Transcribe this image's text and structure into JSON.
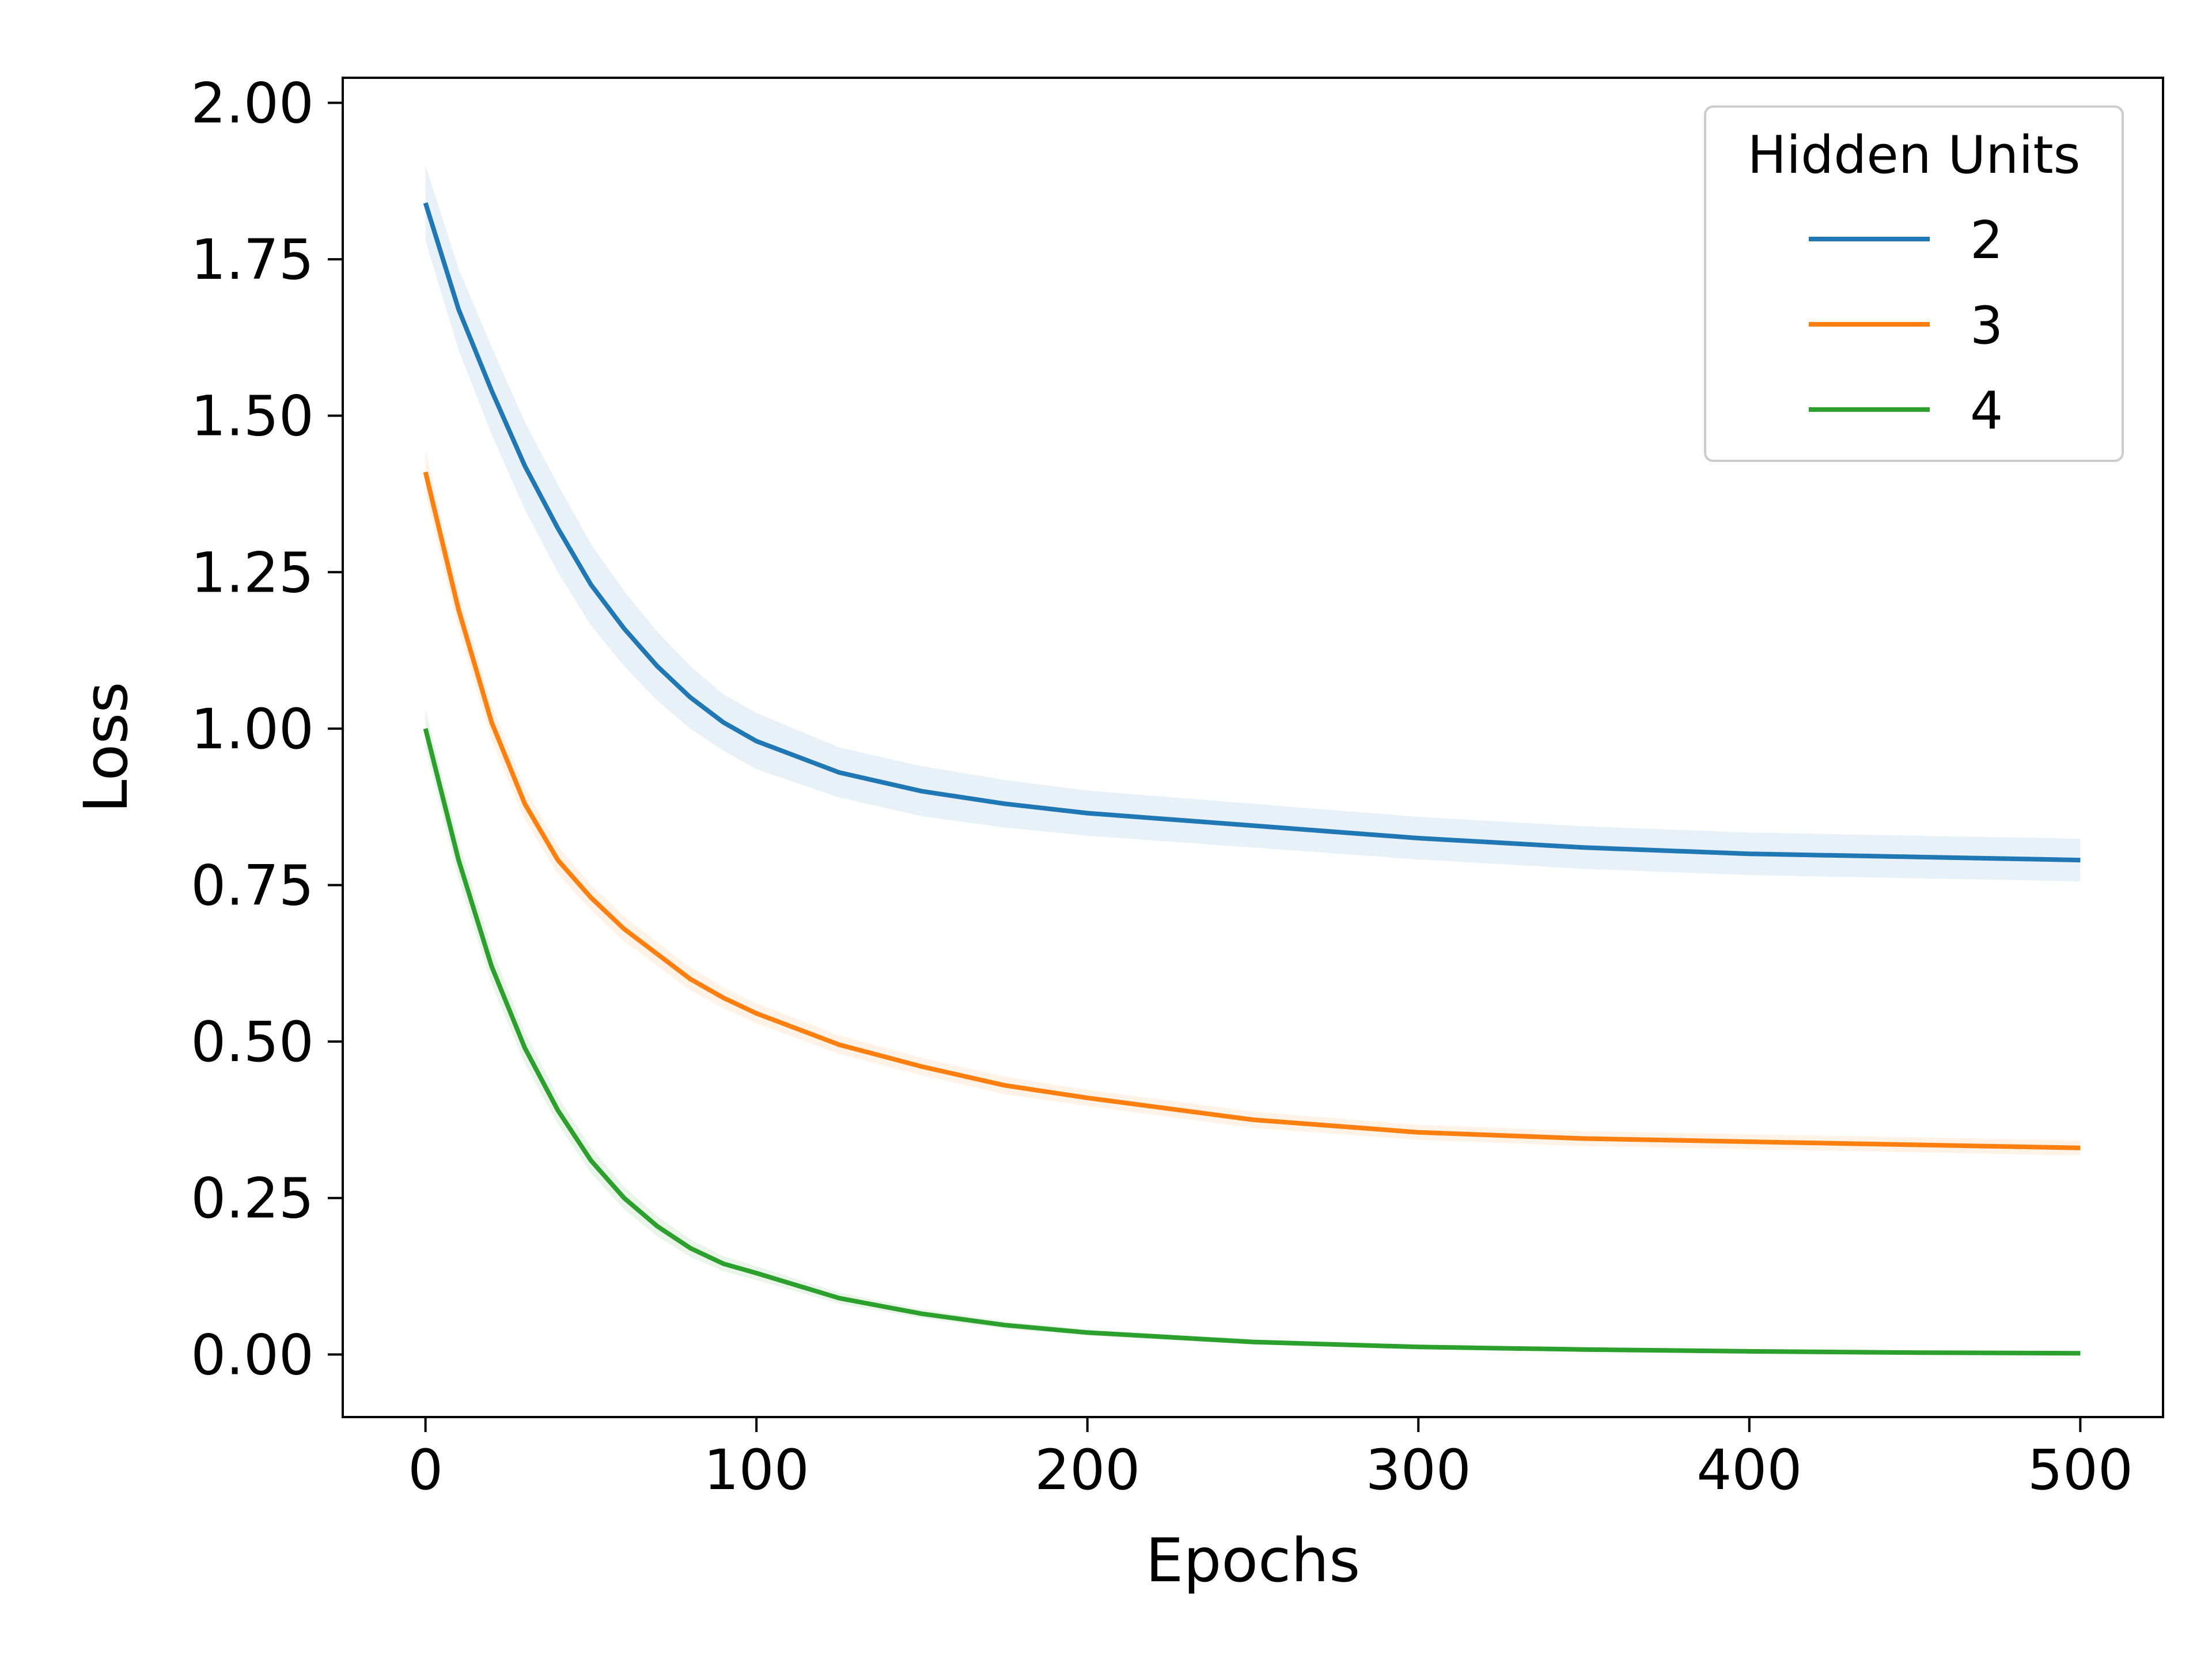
{
  "chart_data": {
    "type": "line",
    "title": "",
    "xlabel": "Epochs",
    "ylabel": "Loss",
    "xlim": [
      -25,
      525
    ],
    "ylim": [
      -0.1,
      2.04
    ],
    "xticks": [
      0,
      100,
      200,
      300,
      400,
      500
    ],
    "xtick_labels": [
      "0",
      "100",
      "200",
      "300",
      "400",
      "500"
    ],
    "yticks": [
      0.0,
      0.25,
      0.5,
      0.75,
      1.0,
      1.25,
      1.5,
      1.75,
      2.0
    ],
    "ytick_labels": [
      "0.00",
      "0.25",
      "0.50",
      "0.75",
      "1.00",
      "1.25",
      "1.50",
      "1.75",
      "2.00"
    ],
    "grid": false,
    "legend": {
      "title": "Hidden Units",
      "position": "top-right"
    },
    "x": [
      0,
      10,
      20,
      30,
      40,
      50,
      60,
      70,
      80,
      90,
      100,
      125,
      150,
      175,
      200,
      250,
      300,
      350,
      400,
      450,
      500
    ],
    "series": [
      {
        "name": "2",
        "color": "#1f77b4",
        "values": [
          1.84,
          1.67,
          1.54,
          1.42,
          1.32,
          1.23,
          1.16,
          1.1,
          1.05,
          1.01,
          0.98,
          0.93,
          0.9,
          0.88,
          0.865,
          0.845,
          0.825,
          0.81,
          0.8,
          0.795,
          0.79
        ],
        "band": [
          0.06,
          0.065,
          0.07,
          0.07,
          0.07,
          0.065,
          0.06,
          0.055,
          0.05,
          0.045,
          0.045,
          0.04,
          0.04,
          0.038,
          0.036,
          0.035,
          0.034,
          0.034,
          0.034,
          0.034,
          0.034
        ]
      },
      {
        "name": "3",
        "color": "#ff7f0e",
        "values": [
          1.41,
          1.19,
          1.01,
          0.88,
          0.79,
          0.73,
          0.68,
          0.64,
          0.6,
          0.57,
          0.545,
          0.495,
          0.46,
          0.43,
          0.41,
          0.375,
          0.355,
          0.345,
          0.34,
          0.335,
          0.33
        ],
        "band": [
          0.035,
          0.03,
          0.028,
          0.025,
          0.022,
          0.02,
          0.02,
          0.019,
          0.018,
          0.017,
          0.016,
          0.015,
          0.014,
          0.014,
          0.013,
          0.013,
          0.012,
          0.012,
          0.012,
          0.012,
          0.012
        ]
      },
      {
        "name": "4",
        "color": "#2ca02c",
        "values": [
          1.0,
          0.79,
          0.62,
          0.49,
          0.39,
          0.31,
          0.25,
          0.205,
          0.17,
          0.145,
          0.13,
          0.09,
          0.065,
          0.047,
          0.035,
          0.02,
          0.012,
          0.008,
          0.005,
          0.003,
          0.002
        ],
        "band": [
          0.03,
          0.03,
          0.028,
          0.025,
          0.022,
          0.02,
          0.018,
          0.016,
          0.014,
          0.012,
          0.011,
          0.009,
          0.007,
          0.006,
          0.005,
          0.004,
          0.003,
          0.003,
          0.003,
          0.003,
          0.003
        ]
      }
    ]
  }
}
